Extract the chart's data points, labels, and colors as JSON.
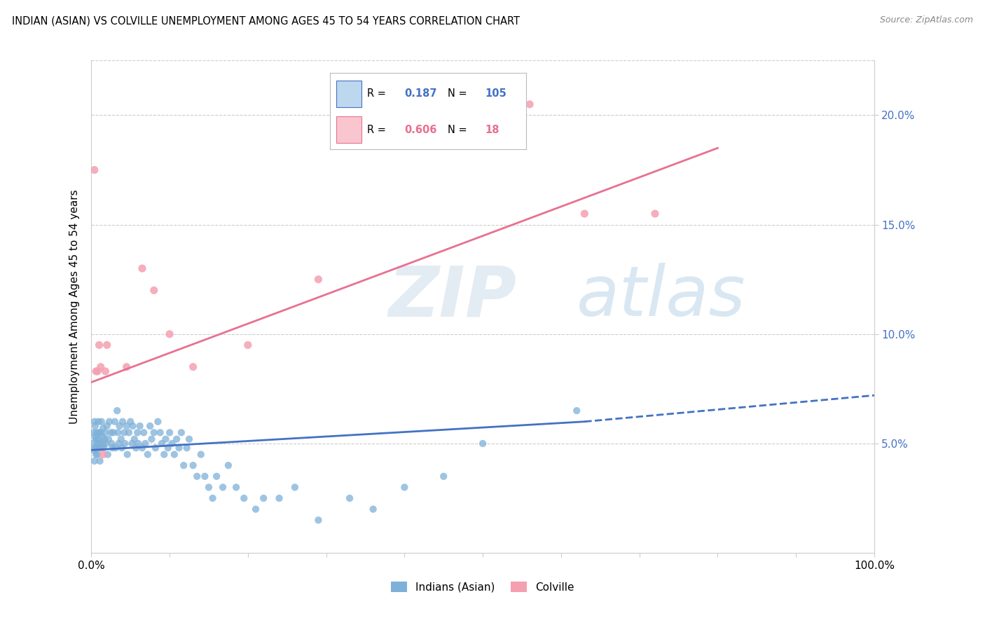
{
  "title": "INDIAN (ASIAN) VS COLVILLE UNEMPLOYMENT AMONG AGES 45 TO 54 YEARS CORRELATION CHART",
  "source": "Source: ZipAtlas.com",
  "ylabel": "Unemployment Among Ages 45 to 54 years",
  "y_ticks": [
    0.05,
    0.1,
    0.15,
    0.2
  ],
  "y_tick_labels": [
    "5.0%",
    "10.0%",
    "15.0%",
    "20.0%"
  ],
  "x_tick_positions": [
    0.0,
    0.1,
    0.2,
    0.3,
    0.4,
    0.5,
    0.6,
    0.7,
    0.8,
    0.9,
    1.0
  ],
  "x_tick_labels": [
    "0.0%",
    "",
    "",
    "",
    "",
    "",
    "",
    "",
    "",
    "",
    "100.0%"
  ],
  "blue_R": 0.187,
  "blue_N": 105,
  "pink_R": 0.606,
  "pink_N": 18,
  "blue_color": "#7EB0D8",
  "pink_color": "#F4A0B0",
  "blue_line_color": "#4472C4",
  "pink_line_color": "#E87090",
  "watermark_zip": "ZIP",
  "watermark_atlas": "atlas",
  "blue_scatter_x": [
    0.002,
    0.003,
    0.003,
    0.004,
    0.004,
    0.005,
    0.005,
    0.005,
    0.006,
    0.006,
    0.007,
    0.007,
    0.008,
    0.008,
    0.009,
    0.009,
    0.01,
    0.01,
    0.011,
    0.011,
    0.012,
    0.013,
    0.013,
    0.014,
    0.015,
    0.015,
    0.016,
    0.017,
    0.018,
    0.019,
    0.02,
    0.021,
    0.022,
    0.023,
    0.025,
    0.026,
    0.027,
    0.028,
    0.03,
    0.031,
    0.033,
    0.034,
    0.035,
    0.036,
    0.038,
    0.039,
    0.04,
    0.042,
    0.043,
    0.045,
    0.046,
    0.048,
    0.05,
    0.052,
    0.053,
    0.055,
    0.057,
    0.059,
    0.06,
    0.062,
    0.065,
    0.067,
    0.069,
    0.072,
    0.075,
    0.077,
    0.08,
    0.082,
    0.085,
    0.088,
    0.09,
    0.093,
    0.095,
    0.098,
    0.1,
    0.103,
    0.106,
    0.109,
    0.112,
    0.115,
    0.118,
    0.122,
    0.125,
    0.13,
    0.135,
    0.14,
    0.145,
    0.15,
    0.155,
    0.16,
    0.168,
    0.175,
    0.185,
    0.195,
    0.21,
    0.22,
    0.24,
    0.26,
    0.29,
    0.33,
    0.36,
    0.4,
    0.45,
    0.5,
    0.62
  ],
  "blue_scatter_y": [
    0.05,
    0.047,
    0.055,
    0.042,
    0.06,
    0.048,
    0.053,
    0.058,
    0.045,
    0.052,
    0.048,
    0.055,
    0.05,
    0.045,
    0.052,
    0.06,
    0.048,
    0.055,
    0.05,
    0.042,
    0.055,
    0.048,
    0.06,
    0.053,
    0.05,
    0.057,
    0.048,
    0.052,
    0.055,
    0.05,
    0.058,
    0.045,
    0.052,
    0.06,
    0.055,
    0.05,
    0.048,
    0.055,
    0.06,
    0.048,
    0.065,
    0.055,
    0.05,
    0.058,
    0.052,
    0.048,
    0.06,
    0.055,
    0.05,
    0.058,
    0.045,
    0.055,
    0.06,
    0.05,
    0.058,
    0.052,
    0.048,
    0.055,
    0.05,
    0.058,
    0.048,
    0.055,
    0.05,
    0.045,
    0.058,
    0.052,
    0.055,
    0.048,
    0.06,
    0.055,
    0.05,
    0.045,
    0.052,
    0.048,
    0.055,
    0.05,
    0.045,
    0.052,
    0.048,
    0.055,
    0.04,
    0.048,
    0.052,
    0.04,
    0.035,
    0.045,
    0.035,
    0.03,
    0.025,
    0.035,
    0.03,
    0.04,
    0.03,
    0.025,
    0.02,
    0.025,
    0.025,
    0.03,
    0.015,
    0.025,
    0.02,
    0.03,
    0.035,
    0.05,
    0.065
  ],
  "pink_scatter_x": [
    0.004,
    0.006,
    0.008,
    0.01,
    0.012,
    0.015,
    0.018,
    0.02,
    0.045,
    0.065,
    0.08,
    0.1,
    0.13,
    0.2,
    0.29,
    0.56,
    0.63,
    0.72
  ],
  "pink_scatter_y": [
    0.175,
    0.083,
    0.083,
    0.095,
    0.085,
    0.045,
    0.083,
    0.095,
    0.085,
    0.13,
    0.12,
    0.1,
    0.085,
    0.095,
    0.125,
    0.205,
    0.155,
    0.155
  ],
  "blue_trend_x0": 0.0,
  "blue_trend_x_solid_end": 0.63,
  "blue_trend_x_dashed_end": 1.0,
  "blue_trend_y_at_0": 0.047,
  "blue_trend_y_at_solid_end": 0.06,
  "blue_trend_y_at_dashed_end": 0.072,
  "pink_trend_x0": 0.0,
  "pink_trend_x1": 0.8,
  "pink_trend_y0": 0.078,
  "pink_trend_y1": 0.185
}
